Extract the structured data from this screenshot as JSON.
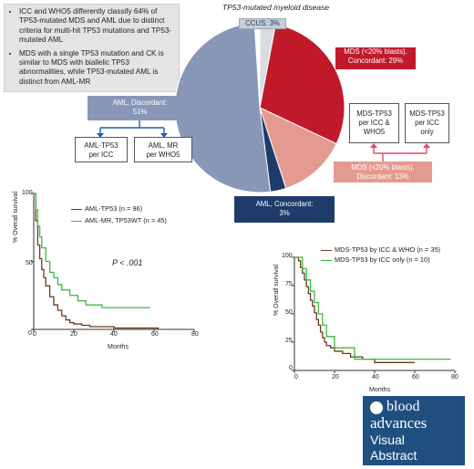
{
  "key_points": [
    "ICC and WHO5 differently classify 64% of TP53-mutated MDS and AML due to distinct criteria for multi-hit TP53 mutations and TP53-mutated AML",
    "MDS with a single TP53 mutation and CK is similar to MDS with biallelic TP53 abnormalities, while TP53-mutated AML is distinct from AML-MR"
  ],
  "diagram_title": "TP53-mutated myeloid disease",
  "pie_labels": {
    "ccus": "CCUS: 3%",
    "mds_concordant_1": "MDS (<20% blasts),",
    "mds_concordant_2": "Concordant: 29%",
    "aml_discordant_1": "AML, Discordant:",
    "aml_discordant_2": "51%",
    "mds_discordant_1": "MDS (<20% blasts),",
    "mds_discordant_2": "Discordant: 13%",
    "aml_concordant_1": "AML, Concordant:",
    "aml_concordant_2": "3%"
  },
  "pie_segments": [
    {
      "name": "CCUS",
      "pct": 3,
      "color": "#d9dce3"
    },
    {
      "name": "MDS concordant",
      "pct": 29,
      "color": "#c01a2a"
    },
    {
      "name": "MDS discordant",
      "pct": 13,
      "color": "#e49b8f"
    },
    {
      "name": "AML concordant",
      "pct": 3,
      "color": "#1f3b6a"
    },
    {
      "name": "AML discordant",
      "pct": 51,
      "color": "#8897b7"
    }
  ],
  "class_boxes": {
    "aml_icc_1": "AML-TP53",
    "aml_icc_2": "per ICC",
    "aml_who_1": "AML, MR",
    "aml_who_2": "per WHO5",
    "mds_both_1": "MDS-TP53",
    "mds_both_2": "per ICC &",
    "mds_both_3": "WHO5",
    "mds_icc_1": "MDS-TP53",
    "mds_icc_2": "per ICC",
    "mds_icc_3": "only"
  },
  "colors": {
    "curve_brown": "#6b3a1f",
    "curve_green": "#3cbb3c",
    "logo_blue": "#1f4f7f"
  },
  "chart_data": [
    {
      "type": "line",
      "title": "",
      "xlabel": "Months",
      "ylabel": "% Overall survival",
      "xlim": [
        0,
        80
      ],
      "ylim": [
        0,
        100
      ],
      "x_ticks": [
        "0",
        "20",
        "40",
        "60",
        "80"
      ],
      "y_ticks": [
        "0",
        "50",
        "100"
      ],
      "annotation": "P < .001",
      "series": [
        {
          "name": "AML-TP53 (n = 96)",
          "color": "#6b3a1f",
          "x": [
            0,
            1,
            2,
            3,
            4,
            5,
            6,
            8,
            10,
            12,
            14,
            16,
            18,
            20,
            24,
            28,
            32,
            40,
            50,
            62
          ],
          "y": [
            100,
            80,
            62,
            52,
            44,
            38,
            32,
            24,
            18,
            14,
            10,
            7,
            5,
            4,
            3,
            2,
            2,
            1,
            1,
            0
          ]
        },
        {
          "name": "AML-MR, TP53WT (n = 45)",
          "color": "#3cbb3c",
          "x": [
            0,
            1,
            2,
            3,
            4,
            6,
            8,
            10,
            12,
            14,
            18,
            22,
            26,
            34,
            45,
            52,
            58
          ],
          "y": [
            100,
            88,
            76,
            68,
            60,
            50,
            42,
            38,
            33,
            29,
            25,
            21,
            18,
            16,
            16,
            16,
            16
          ]
        }
      ]
    },
    {
      "type": "line",
      "title": "",
      "xlabel": "Months",
      "ylabel": "% Overall survival",
      "xlim": [
        0,
        80
      ],
      "ylim": [
        0,
        100
      ],
      "x_ticks": [
        "0",
        "20",
        "40",
        "60",
        "80"
      ],
      "y_ticks": [
        "0",
        "25",
        "50",
        "75",
        "100"
      ],
      "series": [
        {
          "name": "MDS-TP53 by ICC & WHO (n = 35)",
          "color": "#6b3a1f",
          "x": [
            0,
            2,
            3,
            4,
            5,
            6,
            7,
            8,
            9,
            10,
            11,
            12,
            13,
            14,
            15,
            16,
            18,
            20,
            24,
            28,
            34,
            38,
            40,
            50,
            60
          ],
          "y": [
            100,
            97,
            91,
            86,
            80,
            74,
            68,
            62,
            57,
            51,
            45,
            40,
            34,
            29,
            25,
            22,
            20,
            17,
            15,
            12,
            10,
            10,
            7,
            7,
            7
          ]
        },
        {
          "name": "MDS-TP53 by ICC only (n = 10)",
          "color": "#3cbb3c",
          "x": [
            0,
            4,
            6,
            8,
            10,
            12,
            14,
            16,
            20,
            30,
            40,
            60,
            78
          ],
          "y": [
            100,
            90,
            80,
            70,
            60,
            50,
            40,
            30,
            20,
            10,
            10,
            10,
            10
          ]
        }
      ]
    }
  ],
  "logo": {
    "line1": "blood",
    "line2": "advances",
    "line3": "Visual",
    "line4": "Abstract"
  }
}
